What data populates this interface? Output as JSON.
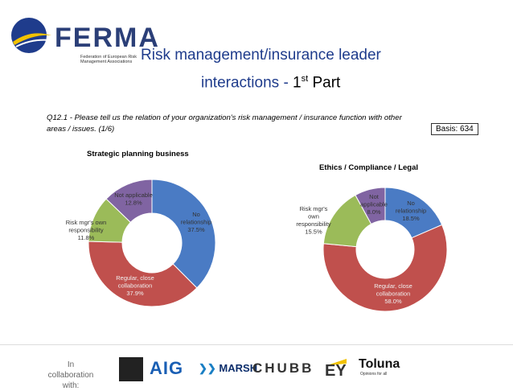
{
  "header": {
    "logo_text": "FERMA",
    "logo_subtitle": "Federation of European Risk Management Associations",
    "title_line1": "Risk management/insurance leader",
    "title_line2": "interactions - ",
    "title_num": "1",
    "title_sup": "st",
    "title_part": " Part"
  },
  "question": "Q12.1 - Please tell us the relation of your organization's risk management / insurance function with other areas / issues. (1/6)",
  "basis": "Basis: 634",
  "colors": {
    "no_relationship": "#4a7bc4",
    "regular": "#c0504d",
    "own_responsibility": "#9bbb59",
    "not_applicable": "#8064a2"
  },
  "chart_data": [
    {
      "type": "pie",
      "donut": true,
      "title": "Strategic planning business",
      "slices": [
        {
          "label": "No relationship",
          "value": 37.5,
          "text": "37.5%"
        },
        {
          "label": "Regular, close collaboration",
          "value": 37.9,
          "text": "37.9%"
        },
        {
          "label": "Risk mgr's own responsibility",
          "value": 11.8,
          "text": "11.8%"
        },
        {
          "label": "Not applicable",
          "value": 12.8,
          "text": "12.8%"
        }
      ]
    },
    {
      "type": "pie",
      "donut": true,
      "title": "Ethics / Compliance / Legal",
      "slices": [
        {
          "label": "No relationship",
          "value": 18.5,
          "text": "18.5%"
        },
        {
          "label": "Regular, close collaboration",
          "value": 58.0,
          "text": "58.0%"
        },
        {
          "label": "Risk mgr's own responsibility",
          "value": 15.5,
          "text": "15.5%"
        },
        {
          "label": "Not applicable",
          "value": 8.0,
          "text": "8.0%"
        }
      ]
    }
  ],
  "footer": {
    "collab_label": "In collaboration with:",
    "sponsors": [
      "AIG",
      "MARSH",
      "CHUBB",
      "EY",
      "Toluna"
    ],
    "toluna_tagline": "Opinions for all"
  }
}
